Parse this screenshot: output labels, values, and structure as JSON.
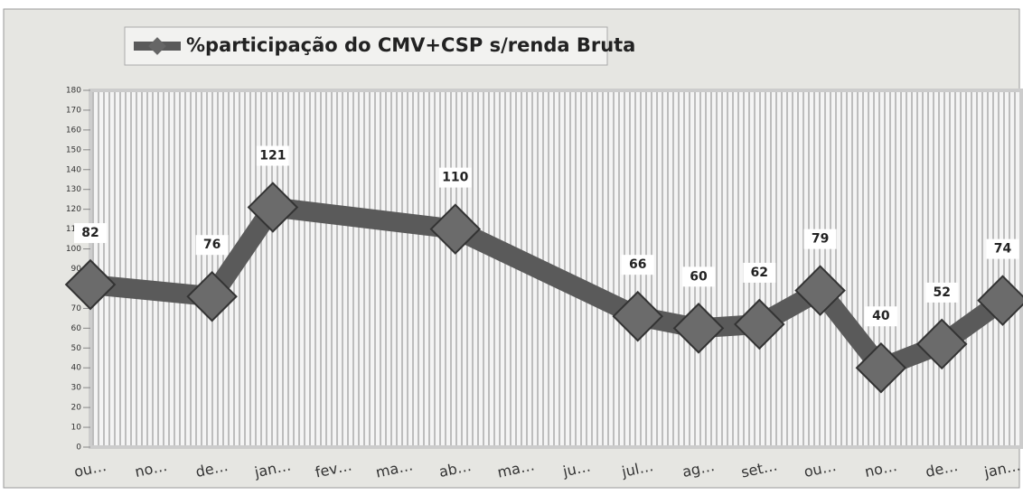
{
  "chart_data": {
    "type": "line",
    "categories": [
      "ou…",
      "no…",
      "de…",
      "jan…",
      "fev…",
      "ma…",
      "ab…",
      "ma…",
      "ju…",
      "jul…",
      "ag…",
      "set…",
      "ou…",
      "no…",
      "de…",
      "jan…"
    ],
    "series": [
      {
        "name": "%participação do CMV+CSP s/renda Bruta",
        "color": "#5a5a5a",
        "values": [
          82,
          null,
          76,
          121,
          null,
          null,
          110,
          null,
          null,
          66,
          60,
          62,
          79,
          40,
          52,
          74
        ]
      }
    ],
    "ylim": [
      0,
      180
    ],
    "yticks": [
      0,
      10,
      20,
      30,
      40,
      50,
      60,
      70,
      80,
      90,
      100,
      110,
      120,
      130,
      140,
      150,
      160,
      170,
      180
    ],
    "connect_gaps": true,
    "legend": "top-left"
  }
}
